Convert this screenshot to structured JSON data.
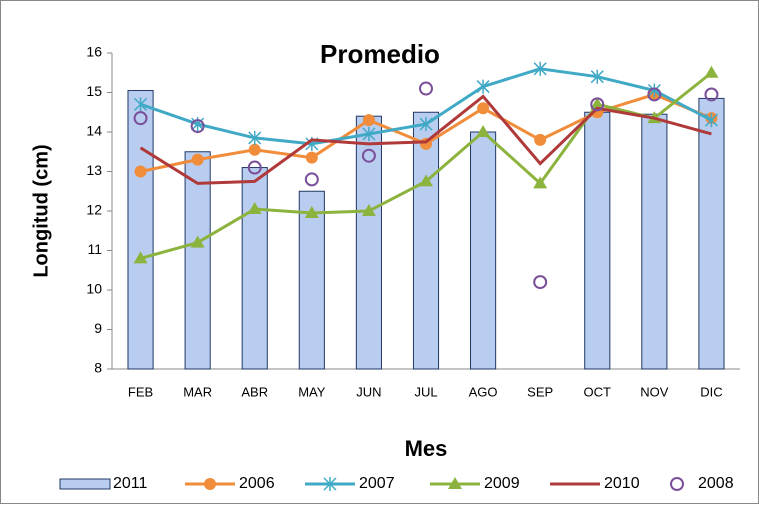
{
  "chart_data": {
    "type": "combo",
    "title": "Promedio",
    "y_label": "Longitud (cm)",
    "x_label": "Mes",
    "categories": [
      "FEB",
      "MAR",
      "ABR",
      "MAY",
      "JUN",
      "JUL",
      "AGO",
      "SEP",
      "OCT",
      "NOV",
      "DIC"
    ],
    "ylim": [
      8,
      16
    ],
    "yticks": [
      8,
      9,
      10,
      11,
      12,
      13,
      14,
      15,
      16
    ],
    "grid": false,
    "legend": "bottom",
    "series": [
      {
        "name": "2011",
        "type": "bar",
        "color": "#b9cdf0",
        "values": [
          15.05,
          13.5,
          13.1,
          12.5,
          14.4,
          14.5,
          14.0,
          null,
          14.5,
          14.45,
          14.85
        ]
      },
      {
        "name": "2006",
        "type": "line",
        "marker": "circle",
        "color": "#f08c3a",
        "values": [
          13.0,
          13.3,
          13.55,
          13.35,
          14.3,
          13.7,
          14.6,
          13.8,
          14.5,
          14.95,
          14.35
        ]
      },
      {
        "name": "2007",
        "type": "line",
        "marker": "star",
        "color": "#3fa9c6",
        "values": [
          14.7,
          14.2,
          13.85,
          13.7,
          13.95,
          14.2,
          15.15,
          15.6,
          15.4,
          15.05,
          14.3
        ]
      },
      {
        "name": "2009",
        "type": "line",
        "marker": "triangle",
        "color": "#8db33f",
        "values": [
          10.8,
          11.2,
          12.05,
          11.95,
          12.0,
          12.75,
          14.0,
          12.7,
          14.7,
          14.35,
          15.5
        ]
      },
      {
        "name": "2010",
        "type": "line",
        "marker": "none",
        "color": "#b03a3a",
        "values": [
          13.6,
          12.7,
          12.75,
          13.8,
          13.7,
          13.75,
          14.9,
          13.2,
          14.6,
          14.35,
          13.95
        ]
      },
      {
        "name": "2008",
        "type": "scatter",
        "marker": "open-circle",
        "color": "#7a4f9a",
        "values": [
          14.35,
          14.15,
          13.1,
          12.8,
          13.4,
          15.1,
          null,
          10.2,
          14.7,
          14.95,
          14.95
        ]
      }
    ]
  }
}
